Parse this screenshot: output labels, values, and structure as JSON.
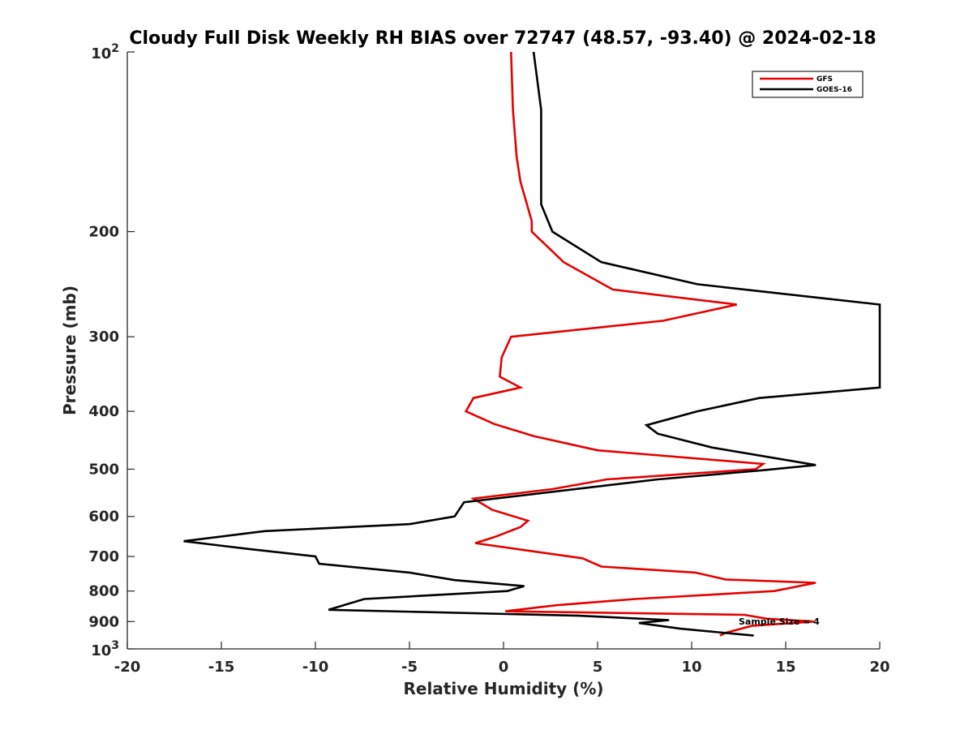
{
  "chart_data": {
    "type": "line",
    "title": "Cloudy Full Disk Weekly RH BIAS over 72747 (48.57, -93.40) @ 2024-02-18",
    "xlabel": "Relative Humidity (%)",
    "ylabel": "Pressure (mb)",
    "xlim": [
      -20,
      20
    ],
    "ylim": [
      100,
      1000
    ],
    "yscale": "log",
    "y_reversed": true,
    "grid": false,
    "legend_position": "top-right",
    "x_ticks": [
      -20,
      -15,
      -10,
      -5,
      0,
      5,
      10,
      15,
      20
    ],
    "x_tick_labels": [
      "-20",
      "-15",
      "-10",
      "-5",
      "0",
      "5",
      "10",
      "15",
      "20"
    ],
    "y_ticks": [
      {
        "value": 100,
        "base": "10",
        "exp": "2"
      },
      {
        "value": 200,
        "label": "200"
      },
      {
        "value": 300,
        "label": "300"
      },
      {
        "value": 400,
        "label": "400"
      },
      {
        "value": 500,
        "label": "500"
      },
      {
        "value": 600,
        "label": "600"
      },
      {
        "value": 700,
        "label": "700"
      },
      {
        "value": 800,
        "label": "800"
      },
      {
        "value": 900,
        "label": "900"
      },
      {
        "value": 1000,
        "base": "10",
        "exp": "3"
      }
    ],
    "annotation": "Sample Size = 4",
    "series": [
      {
        "name": "GFS",
        "color": "#e60000",
        "points": [
          [
            0.4,
            100
          ],
          [
            0.5,
            125
          ],
          [
            0.7,
            150
          ],
          [
            0.9,
            165
          ],
          [
            1.5,
            192
          ],
          [
            1.5,
            200
          ],
          [
            3.2,
            225
          ],
          [
            5.8,
            250
          ],
          [
            12.4,
            265
          ],
          [
            8.5,
            282
          ],
          [
            0.4,
            300
          ],
          [
            -0.1,
            325
          ],
          [
            -0.2,
            350
          ],
          [
            0.9,
            365
          ],
          [
            -1.6,
            380
          ],
          [
            -2.0,
            400
          ],
          [
            -0.5,
            420
          ],
          [
            1.6,
            440
          ],
          [
            5.0,
            465
          ],
          [
            13.8,
            490
          ],
          [
            13.4,
            500
          ],
          [
            5.5,
            520
          ],
          [
            2.6,
            540
          ],
          [
            -1.6,
            560
          ],
          [
            -0.6,
            585
          ],
          [
            1.3,
            610
          ],
          [
            0.9,
            625
          ],
          [
            -0.5,
            650
          ],
          [
            -1.5,
            665
          ],
          [
            4.2,
            705
          ],
          [
            5.2,
            728
          ],
          [
            10.2,
            745
          ],
          [
            11.8,
            765
          ],
          [
            16.6,
            775
          ],
          [
            14.4,
            800
          ],
          [
            7.0,
            825
          ],
          [
            2.8,
            845
          ],
          [
            0.1,
            865
          ],
          [
            12.8,
            877
          ],
          [
            14.0,
            890
          ],
          [
            16.5,
            900
          ],
          [
            13.2,
            915
          ],
          [
            11.8,
            940
          ],
          [
            11.5,
            950
          ]
        ]
      },
      {
        "name": "GOES-16",
        "color": "#000000",
        "points": [
          [
            1.6,
            100
          ],
          [
            2.0,
            125
          ],
          [
            2.0,
            180
          ],
          [
            2.6,
            200
          ],
          [
            5.2,
            225
          ],
          [
            10.3,
            245
          ],
          [
            20.0,
            265
          ],
          [
            20.0,
            365
          ],
          [
            13.6,
            380
          ],
          [
            10.3,
            400
          ],
          [
            7.6,
            422
          ],
          [
            8.2,
            436
          ],
          [
            11.1,
            460
          ],
          [
            16.6,
            492
          ],
          [
            13.8,
            502
          ],
          [
            8.2,
            520
          ],
          [
            -2.1,
            568
          ],
          [
            -2.6,
            600
          ],
          [
            -5.0,
            618
          ],
          [
            -12.7,
            635
          ],
          [
            -17.0,
            660
          ],
          [
            -13.6,
            680
          ],
          [
            -10.0,
            700
          ],
          [
            -9.8,
            720
          ],
          [
            -5.0,
            745
          ],
          [
            -2.6,
            767
          ],
          [
            1.1,
            785
          ],
          [
            0.2,
            800
          ],
          [
            -7.4,
            825
          ],
          [
            -9.3,
            860
          ],
          [
            4.0,
            880
          ],
          [
            8.8,
            895
          ],
          [
            7.2,
            905
          ],
          [
            9.4,
            925
          ],
          [
            13.3,
            950
          ]
        ]
      }
    ]
  }
}
